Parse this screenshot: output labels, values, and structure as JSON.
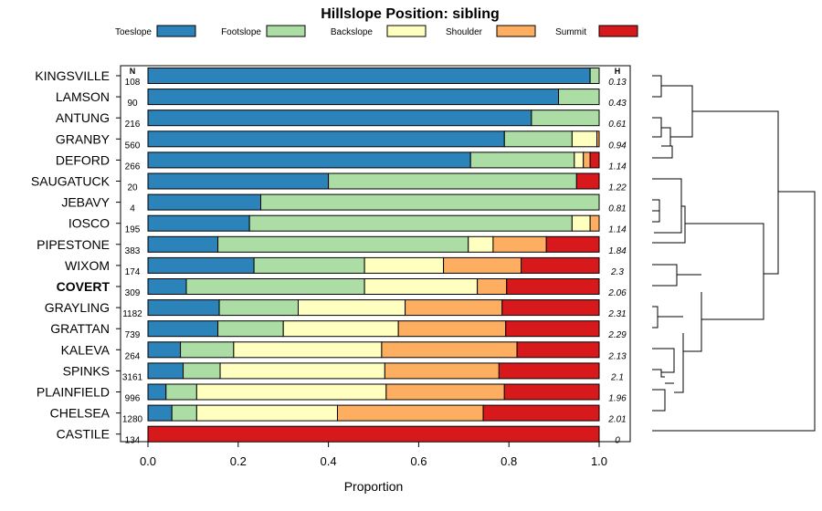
{
  "chart_data": {
    "type": "bar",
    "stacked": true,
    "orientation": "horizontal",
    "title": "Hillslope Position: sibling",
    "xlabel": "Proportion",
    "xlim": [
      0,
      1
    ],
    "xticks": [
      "0.0",
      "0.2",
      "0.4",
      "0.6",
      "0.8",
      "1.0"
    ],
    "n_header": "N",
    "h_header": "H",
    "categories": [
      "KINGSVILLE",
      "LAMSON",
      "ANTUNG",
      "GRANBY",
      "DEFORD",
      "SAUGATUCK",
      "JEBAVY",
      "IOSCO",
      "PIPESTONE",
      "WIXOM",
      "COVERT",
      "GRAYLING",
      "GRATTAN",
      "KALEVA",
      "SPINKS",
      "PLAINFIELD",
      "CHELSEA",
      "CASTILE"
    ],
    "highlight": "COVERT",
    "n": [
      "108",
      "90",
      "216",
      "560",
      "266",
      "20",
      "4",
      "195",
      "383",
      "174",
      "309",
      "1182",
      "739",
      "264",
      "3161",
      "996",
      "1280",
      "134"
    ],
    "h": [
      "0.13",
      "0.43",
      "0.61",
      "0.94",
      "1.14",
      "1.22",
      "0.81",
      "1.14",
      "1.84",
      "2.3",
      "2.06",
      "2.31",
      "2.29",
      "2.13",
      "2.1",
      "1.96",
      "2.01",
      "0"
    ],
    "series": [
      {
        "name": "Toeslope",
        "color": "#2B83BA",
        "values": [
          0.98,
          0.91,
          0.85,
          0.79,
          0.715,
          0.4,
          0.25,
          0.225,
          0.155,
          0.235,
          0.085,
          0.158,
          0.155,
          0.072,
          0.078,
          0.04,
          0.053,
          0
        ]
      },
      {
        "name": "Footslope",
        "color": "#ABDDA4",
        "values": [
          0.02,
          0.09,
          0.15,
          0.15,
          0.23,
          0.55,
          0.75,
          0.715,
          0.555,
          0.245,
          0.395,
          0.175,
          0.145,
          0.118,
          0.082,
          0.068,
          0.055,
          0
        ]
      },
      {
        "name": "Backslope",
        "color": "#FFFFBF",
        "values": [
          0,
          0,
          0,
          0.055,
          0.02,
          0,
          0,
          0.04,
          0.055,
          0.175,
          0.25,
          0.237,
          0.255,
          0.328,
          0.365,
          0.42,
          0.312,
          0
        ]
      },
      {
        "name": "Shoulder",
        "color": "#FDAE61",
        "values": [
          0,
          0,
          0,
          0.005,
          0.015,
          0,
          0,
          0.02,
          0.118,
          0.172,
          0.065,
          0.215,
          0.238,
          0.3,
          0.253,
          0.262,
          0.323,
          0
        ]
      },
      {
        "name": "Summit",
        "color": "#D7191C",
        "values": [
          0,
          0,
          0,
          0,
          0.02,
          0.05,
          0,
          0,
          0.117,
          0.173,
          0.205,
          0.215,
          0.207,
          0.182,
          0.222,
          0.21,
          0.257,
          1
        ]
      }
    ]
  }
}
